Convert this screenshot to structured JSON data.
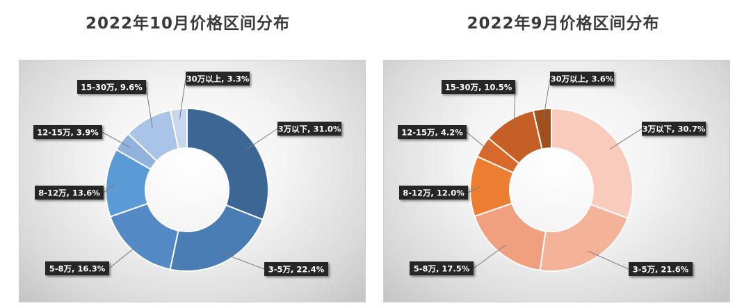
{
  "chart_data": [
    {
      "type": "pie",
      "title": "2022年10月价格区间分布",
      "categories": [
        "3万以下",
        "3-5万",
        "5-8万",
        "8-12万",
        "12-15万",
        "15-30万",
        "30万以上"
      ],
      "values": [
        31.0,
        22.4,
        16.3,
        13.6,
        3.9,
        9.6,
        3.3
      ],
      "labels": [
        "3万以下, 31.0%",
        "3-5万, 22.4%",
        "5-8万, 16.3%",
        "8-12万, 13.6%",
        "12-15万, 3.9%",
        "15-30万, 9.6%",
        "30万以上, 3.3%"
      ],
      "colors": [
        "#3c6795",
        "#4a7db4",
        "#5389c5",
        "#5b9bd5",
        "#8fb3dd",
        "#a9c4e6",
        "#c6d7ee"
      ],
      "donut": true
    },
    {
      "type": "pie",
      "title": "2022年9月价格区间分布",
      "categories": [
        "3万以下",
        "3-5万",
        "5-8万",
        "8-12万",
        "12-15万",
        "15-30万",
        "30万以上"
      ],
      "values": [
        30.7,
        21.6,
        17.5,
        12.0,
        4.2,
        10.5,
        3.6
      ],
      "labels": [
        "3万以下, 30.7%",
        "3-5万, 21.6%",
        "5-8万, 17.5%",
        "8-12万, 12.0%",
        "12-15万, 4.2%",
        "15-30万, 10.5%",
        "30万以上, 3.6%"
      ],
      "colors": [
        "#f8cbbd",
        "#f4b299",
        "#f0a07e",
        "#ed7d31",
        "#d9692a",
        "#c55f25",
        "#a0501c"
      ],
      "donut": true
    }
  ]
}
